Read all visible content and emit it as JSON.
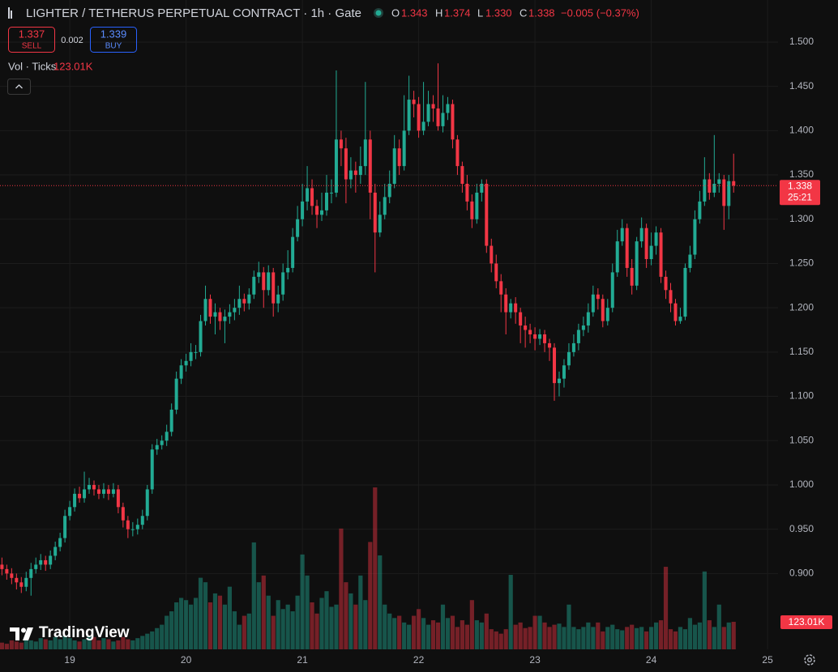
{
  "chart_data": {
    "type": "candlestick",
    "title": "LIGHTER / TETHERUS PERPETUAL CONTRACT · 1h · Gate",
    "legend_keys": [
      "O",
      "H",
      "L",
      "C"
    ],
    "legend_values": [
      "1.343",
      "1.374",
      "1.330",
      "1.338"
    ],
    "change_label": "−0.005 (−0.37%)",
    "countdown": "25:21",
    "volume_label": "123.01K",
    "up_color": "#22ab94",
    "down_color": "#f23645",
    "grid": true,
    "xlim": [
      18.4,
      25.09
    ],
    "xticks": [
      19,
      20,
      21,
      22,
      23,
      24,
      25
    ],
    "ylim": [
      0.8144,
      1.5475
    ],
    "yticks": [
      {
        "value": 0.9,
        "label": "0.900"
      },
      {
        "value": 0.95,
        "label": "0.950"
      },
      {
        "value": 1.0,
        "label": "1.000"
      },
      {
        "value": 1.05,
        "label": "1.050"
      },
      {
        "value": 1.1,
        "label": "1.100"
      },
      {
        "value": 1.15,
        "label": "1.150"
      },
      {
        "value": 1.2,
        "label": "1.200"
      },
      {
        "value": 1.25,
        "label": "1.250"
      },
      {
        "value": 1.3,
        "label": "1.300"
      },
      {
        "value": 1.35,
        "label": "1.350"
      },
      {
        "value": 1.4,
        "label": "1.400"
      },
      {
        "value": 1.45,
        "label": "1.450"
      },
      {
        "value": 1.5,
        "label": "1.500"
      }
    ],
    "x": [
      18.4167,
      18.4583,
      18.5,
      18.5417,
      18.5833,
      18.625,
      18.6667,
      18.7083,
      18.75,
      18.7917,
      18.8333,
      18.875,
      18.9167,
      18.9583,
      19,
      19.0417,
      19.0833,
      19.125,
      19.1667,
      19.2083,
      19.25,
      19.2917,
      19.3333,
      19.375,
      19.4167,
      19.4583,
      19.5,
      19.5417,
      19.5833,
      19.625,
      19.6667,
      19.7083,
      19.75,
      19.7917,
      19.8333,
      19.875,
      19.9167,
      19.9583,
      20,
      20.0417,
      20.0833,
      20.125,
      20.1667,
      20.2083,
      20.25,
      20.2917,
      20.3333,
      20.375,
      20.4167,
      20.4583,
      20.5,
      20.5417,
      20.5833,
      20.625,
      20.6667,
      20.7083,
      20.75,
      20.7917,
      20.8333,
      20.875,
      20.9167,
      20.9583,
      21,
      21.0417,
      21.0833,
      21.125,
      21.1667,
      21.2083,
      21.25,
      21.2917,
      21.3333,
      21.375,
      21.4167,
      21.4583,
      21.5,
      21.5417,
      21.5833,
      21.625,
      21.6667,
      21.7083,
      21.75,
      21.7917,
      21.8333,
      21.875,
      21.9167,
      21.9583,
      22,
      22.0417,
      22.0833,
      22.125,
      22.1667,
      22.2083,
      22.25,
      22.2917,
      22.3333,
      22.375,
      22.4167,
      22.4583,
      22.5,
      22.5417,
      22.5833,
      22.625,
      22.6667,
      22.7083,
      22.75,
      22.7917,
      22.8333,
      22.875,
      22.9167,
      22.9583,
      23,
      23.0417,
      23.0833,
      23.125,
      23.1667,
      23.2083,
      23.25,
      23.2917,
      23.3333,
      23.375,
      23.4167,
      23.4583,
      23.5,
      23.5417,
      23.5833,
      23.625,
      23.6667,
      23.7083,
      23.75,
      23.7917,
      23.8333,
      23.875,
      23.9167,
      23.9583,
      24,
      24.0417,
      24.0833,
      24.125,
      24.1667,
      24.2083,
      24.25,
      24.2917,
      24.3333,
      24.375,
      24.4167,
      24.4583,
      24.5,
      24.5417,
      24.5833,
      24.625,
      24.6667,
      24.7083
    ],
    "open": [
      0.91,
      0.905,
      0.9,
      0.895,
      0.89,
      0.885,
      0.895,
      0.905,
      0.91,
      0.915,
      0.91,
      0.92,
      0.93,
      0.94,
      0.965,
      0.975,
      0.99,
      0.985,
      0.995,
      1.0,
      0.995,
      0.99,
      0.995,
      0.99,
      0.995,
      0.975,
      0.96,
      0.95,
      0.95,
      0.955,
      0.965,
      0.995,
      1.04,
      1.045,
      1.05,
      1.06,
      1.085,
      1.12,
      1.135,
      1.14,
      1.15,
      1.15,
      1.185,
      1.21,
      1.19,
      1.195,
      1.185,
      1.19,
      1.195,
      1.2,
      1.21,
      1.205,
      1.215,
      1.235,
      1.24,
      1.22,
      1.24,
      1.205,
      1.215,
      1.24,
      1.245,
      1.28,
      1.3,
      1.32,
      1.335,
      1.315,
      1.305,
      1.31,
      1.33,
      1.33,
      1.39,
      1.38,
      1.345,
      1.355,
      1.35,
      1.36,
      1.39,
      1.33,
      1.285,
      1.305,
      1.325,
      1.34,
      1.38,
      1.36,
      1.4,
      1.435,
      1.43,
      1.4,
      1.41,
      1.43,
      1.425,
      1.405,
      1.42,
      1.43,
      1.39,
      1.36,
      1.34,
      1.32,
      1.3,
      1.33,
      1.34,
      1.27,
      1.25,
      1.23,
      1.215,
      1.195,
      1.205,
      1.195,
      1.18,
      1.175,
      1.17,
      1.165,
      1.17,
      1.16,
      1.155,
      1.115,
      1.12,
      1.135,
      1.15,
      1.16,
      1.175,
      1.18,
      1.195,
      1.215,
      1.21,
      1.185,
      1.2,
      1.24,
      1.275,
      1.29,
      1.245,
      1.225,
      1.275,
      1.29,
      1.255,
      1.27,
      1.285,
      1.235,
      1.22,
      1.205,
      1.185,
      1.19,
      1.245,
      1.26,
      1.3,
      1.32,
      1.345,
      1.33,
      1.34,
      1.345,
      1.315,
      1.343
    ],
    "high": [
      0.918,
      0.91,
      0.906,
      0.9,
      0.896,
      0.902,
      0.912,
      0.918,
      0.922,
      0.92,
      0.926,
      0.936,
      0.946,
      0.972,
      0.982,
      0.996,
      0.998,
      1.015,
      1.008,
      1.005,
      1.0,
      1.002,
      1.0,
      1.002,
      1.0,
      0.98,
      0.965,
      0.958,
      0.962,
      0.972,
      1.0,
      1.046,
      1.052,
      1.056,
      1.068,
      1.092,
      1.128,
      1.142,
      1.148,
      1.16,
      1.158,
      1.192,
      1.225,
      1.215,
      1.205,
      1.2,
      1.198,
      1.204,
      1.21,
      1.225,
      1.216,
      1.222,
      1.242,
      1.252,
      1.246,
      1.248,
      1.245,
      1.225,
      1.25,
      1.265,
      1.29,
      1.315,
      1.34,
      1.36,
      1.345,
      1.322,
      1.33,
      1.35,
      1.345,
      1.468,
      1.4,
      1.392,
      1.37,
      1.365,
      1.382,
      1.455,
      1.4,
      1.34,
      1.32,
      1.34,
      1.355,
      1.395,
      1.39,
      1.44,
      1.462,
      1.445,
      1.438,
      1.455,
      1.445,
      1.44,
      1.476,
      1.44,
      1.438,
      1.435,
      1.395,
      1.365,
      1.35,
      1.328,
      1.34,
      1.345,
      1.345,
      1.278,
      1.26,
      1.238,
      1.222,
      1.21,
      1.212,
      1.2,
      1.19,
      1.182,
      1.178,
      1.176,
      1.175,
      1.165,
      1.16,
      1.128,
      1.142,
      1.16,
      1.17,
      1.182,
      1.19,
      1.205,
      1.225,
      1.222,
      1.215,
      1.21,
      1.25,
      1.288,
      1.3,
      1.295,
      1.255,
      1.28,
      1.302,
      1.295,
      1.285,
      1.292,
      1.29,
      1.242,
      1.228,
      1.21,
      1.2,
      1.25,
      1.27,
      1.31,
      1.332,
      1.37,
      1.352,
      1.395,
      1.352,
      1.35,
      1.35,
      1.374
    ],
    "low": [
      0.898,
      0.893,
      0.888,
      0.882,
      0.878,
      0.88,
      0.875,
      0.9,
      0.904,
      0.903,
      0.905,
      0.915,
      0.925,
      0.935,
      0.96,
      0.97,
      0.98,
      0.98,
      0.99,
      0.988,
      0.984,
      0.985,
      0.983,
      0.986,
      0.968,
      0.952,
      0.94,
      0.942,
      0.944,
      0.95,
      0.96,
      0.99,
      1.034,
      1.04,
      1.044,
      1.055,
      1.08,
      1.114,
      1.128,
      1.134,
      1.142,
      1.145,
      1.18,
      1.182,
      1.17,
      1.175,
      1.16,
      1.182,
      1.186,
      1.192,
      1.196,
      1.198,
      1.21,
      1.228,
      1.2,
      1.214,
      1.19,
      1.195,
      1.208,
      1.232,
      1.24,
      1.275,
      1.292,
      1.31,
      1.305,
      1.29,
      1.298,
      1.304,
      1.318,
      1.325,
      1.36,
      1.318,
      1.335,
      1.33,
      1.34,
      1.35,
      1.3,
      1.24,
      1.28,
      1.3,
      1.318,
      1.335,
      1.35,
      1.355,
      1.395,
      1.415,
      1.392,
      1.395,
      1.405,
      1.41,
      1.4,
      1.398,
      1.412,
      1.38,
      1.35,
      1.33,
      1.31,
      1.29,
      1.295,
      1.32,
      1.262,
      1.24,
      1.222,
      1.195,
      1.17,
      1.188,
      1.182,
      1.16,
      1.155,
      1.16,
      1.152,
      1.158,
      1.15,
      1.14,
      1.095,
      1.1,
      1.11,
      1.13,
      1.145,
      1.152,
      1.168,
      1.172,
      1.19,
      1.198,
      1.178,
      1.18,
      1.195,
      1.235,
      1.27,
      1.235,
      1.215,
      1.22,
      1.268,
      1.245,
      1.248,
      1.26,
      1.228,
      1.21,
      1.195,
      1.18,
      1.182,
      1.186,
      1.24,
      1.255,
      1.295,
      1.315,
      1.322,
      1.325,
      1.33,
      1.288,
      1.3,
      1.33
    ],
    "close": [
      0.905,
      0.9,
      0.895,
      0.89,
      0.885,
      0.895,
      0.905,
      0.91,
      0.915,
      0.91,
      0.92,
      0.93,
      0.94,
      0.965,
      0.975,
      0.99,
      0.985,
      0.995,
      1.0,
      0.995,
      0.99,
      0.995,
      0.99,
      0.995,
      0.975,
      0.96,
      0.95,
      0.95,
      0.955,
      0.965,
      0.995,
      1.04,
      1.045,
      1.05,
      1.06,
      1.085,
      1.12,
      1.135,
      1.14,
      1.15,
      1.15,
      1.185,
      1.21,
      1.19,
      1.195,
      1.185,
      1.19,
      1.195,
      1.2,
      1.21,
      1.205,
      1.215,
      1.235,
      1.24,
      1.22,
      1.24,
      1.205,
      1.215,
      1.24,
      1.245,
      1.28,
      1.3,
      1.32,
      1.335,
      1.315,
      1.305,
      1.31,
      1.33,
      1.33,
      1.39,
      1.38,
      1.345,
      1.355,
      1.35,
      1.36,
      1.39,
      1.33,
      1.285,
      1.305,
      1.325,
      1.34,
      1.38,
      1.36,
      1.4,
      1.435,
      1.43,
      1.4,
      1.41,
      1.43,
      1.425,
      1.405,
      1.42,
      1.43,
      1.39,
      1.36,
      1.34,
      1.32,
      1.3,
      1.33,
      1.34,
      1.27,
      1.25,
      1.23,
      1.215,
      1.195,
      1.205,
      1.195,
      1.18,
      1.175,
      1.17,
      1.165,
      1.17,
      1.16,
      1.155,
      1.115,
      1.12,
      1.135,
      1.15,
      1.16,
      1.175,
      1.18,
      1.195,
      1.215,
      1.21,
      1.185,
      1.2,
      1.24,
      1.275,
      1.29,
      1.245,
      1.225,
      1.275,
      1.29,
      1.255,
      1.27,
      1.285,
      1.235,
      1.22,
      1.205,
      1.185,
      1.19,
      1.245,
      1.26,
      1.3,
      1.32,
      1.345,
      1.33,
      1.34,
      1.345,
      1.315,
      1.343,
      1.338
    ],
    "volume": [
      30000,
      25000,
      40000,
      35000,
      30000,
      45000,
      40000,
      35000,
      50000,
      45000,
      40000,
      55000,
      45000,
      60000,
      50000,
      40000,
      35000,
      45000,
      60000,
      55000,
      40000,
      50000,
      45000,
      35000,
      40000,
      55000,
      45000,
      40000,
      50000,
      60000,
      70000,
      80000,
      95000,
      110000,
      150000,
      170000,
      210000,
      230000,
      220000,
      200000,
      230000,
      320000,
      300000,
      210000,
      250000,
      240000,
      200000,
      280000,
      170000,
      110000,
      150000,
      160000,
      478000,
      300000,
      330000,
      240000,
      150000,
      220000,
      180000,
      200000,
      170000,
      240000,
      424000,
      330000,
      210000,
      160000,
      230000,
      260000,
      190000,
      200000,
      540000,
      300000,
      250000,
      200000,
      330000,
      220000,
      480000,
      724000,
      420000,
      200000,
      160000,
      140000,
      150000,
      120000,
      110000,
      150000,
      180000,
      140000,
      110000,
      130000,
      120000,
      200000,
      140000,
      150000,
      100000,
      130000,
      110000,
      220000,
      130000,
      120000,
      160000,
      90000,
      80000,
      70000,
      90000,
      333000,
      110000,
      120000,
      95000,
      100000,
      150000,
      150000,
      120000,
      100000,
      110000,
      115000,
      100000,
      200000,
      100000,
      90000,
      100000,
      120000,
      100000,
      120000,
      80000,
      100000,
      110000,
      90000,
      85000,
      100000,
      110000,
      95000,
      100000,
      80000,
      100000,
      120000,
      130000,
      369000,
      90000,
      80000,
      100000,
      90000,
      140000,
      110000,
      120000,
      348000,
      130000,
      100000,
      200000,
      100000,
      120000,
      123010
    ]
  },
  "trade": {
    "sell_price": 1.337,
    "sell_label": "SELL",
    "spread": 0.002,
    "buy_price": 1.339,
    "buy_label": "BUY"
  },
  "volume_indicator": {
    "label": "Vol · Ticks"
  },
  "watermark": "TradingView"
}
